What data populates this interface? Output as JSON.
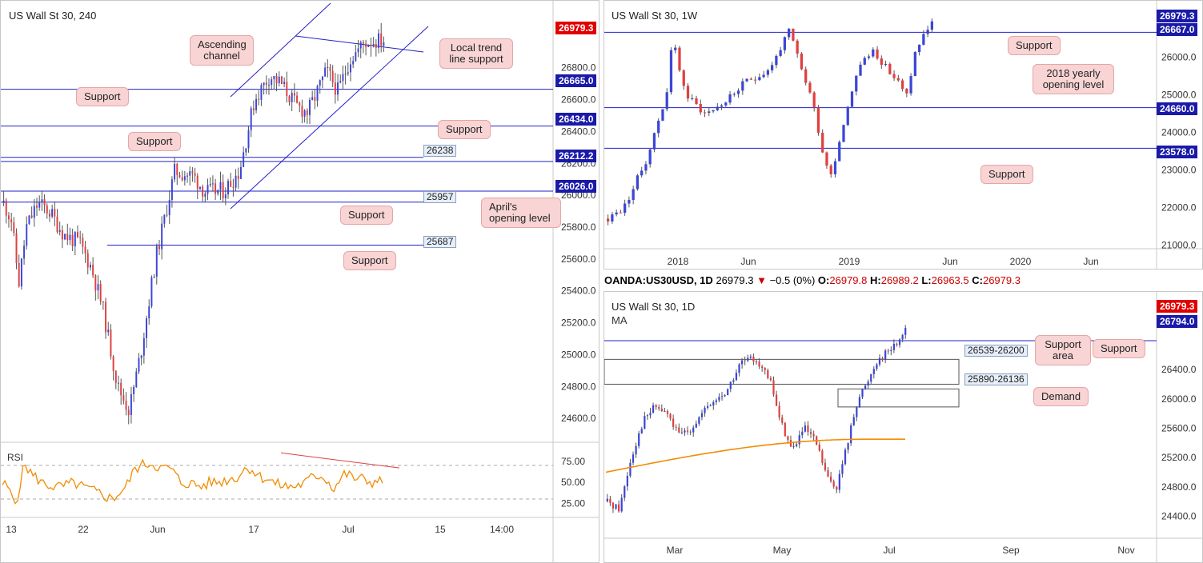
{
  "ohlc_bar": {
    "symbol": "OANDA:US30USD, 1D",
    "last": "26979.3",
    "arrow": "▼",
    "change": "−0.5 (0%)",
    "o_label": "O:",
    "o": "26979.8",
    "h_label": "H:",
    "h": "26989.2",
    "l_label": "L:",
    "l": "26963.5",
    "c_label": "C:",
    "c": "26979.3"
  },
  "colors": {
    "up": "#3b46d6",
    "down": "#e04040",
    "level": "#2020c8",
    "rsi": "#f28c00",
    "ma": "#f28c00",
    "callout": "#f8d4d4"
  },
  "chart_data": [
    {
      "id": "h4",
      "type": "candlestick",
      "title": "US Wall St 30, 240",
      "ylim": [
        24450,
        27180
      ],
      "y_ticks": [
        "26800.0",
        "26600.0",
        "26400.0",
        "26200.0",
        "26000.0",
        "25800.0",
        "25600.0",
        "25400.0",
        "25200.0",
        "25000.0",
        "24800.0",
        "24600.0"
      ],
      "x_ticks": [
        "13",
        "22",
        "Jun",
        "17",
        "Jul",
        "15",
        "14:00"
      ],
      "price_labels": [
        {
          "text": "26979.3",
          "style": "current"
        },
        {
          "text": "26665.0",
          "style": "level"
        },
        {
          "text": "26434.0",
          "style": "level"
        },
        {
          "text": "26212.2",
          "style": "level"
        },
        {
          "text": "26026.0",
          "style": "level"
        }
      ],
      "level_tags": [
        "26238",
        "25957",
        "25687"
      ],
      "callouts": [
        "Ascending channel",
        "Local trend line support",
        "Support",
        "Support",
        "Support",
        "Support",
        "April's opening level",
        "Support"
      ],
      "rsi": {
        "label": "RSI",
        "ticks": [
          "75.00",
          "50.00",
          "25.00"
        ],
        "upper": 70,
        "lower": 30
      }
    },
    {
      "id": "w1",
      "type": "candlestick",
      "title": "US Wall St 30, 1W",
      "ylim": [
        20900,
        27400
      ],
      "y_ticks": [
        "26000.0",
        "25000.0",
        "24000.0",
        "23000.0",
        "22000.0",
        "21000.0"
      ],
      "x_ticks": [
        "2018",
        "Jun",
        "2019",
        "Jun",
        "2020",
        "Jun"
      ],
      "price_labels": [
        {
          "text": "26979.3",
          "style": "level"
        },
        {
          "text": "26667.0",
          "style": "level"
        },
        {
          "text": "24660.0",
          "style": "level"
        },
        {
          "text": "23578.0",
          "style": "level"
        }
      ],
      "callouts": [
        "Support",
        "2018 yearly opening level",
        "Support"
      ]
    },
    {
      "id": "d1",
      "type": "candlestick",
      "title": "US Wall St 30, 1D",
      "indicator": "MA",
      "ylim": [
        24100,
        27350
      ],
      "y_ticks": [
        "26400.0",
        "26000.0",
        "25600.0",
        "25200.0",
        "24800.0",
        "24400.0"
      ],
      "x_ticks": [
        "Mar",
        "May",
        "Jul",
        "Sep",
        "Nov"
      ],
      "price_labels": [
        {
          "text": "26979.3",
          "style": "current"
        },
        {
          "text": "26794.0",
          "style": "level"
        }
      ],
      "zone_tags": [
        "26539-26200",
        "25890-26136"
      ],
      "callouts": [
        "Support area",
        "Support",
        "Demand"
      ]
    }
  ]
}
